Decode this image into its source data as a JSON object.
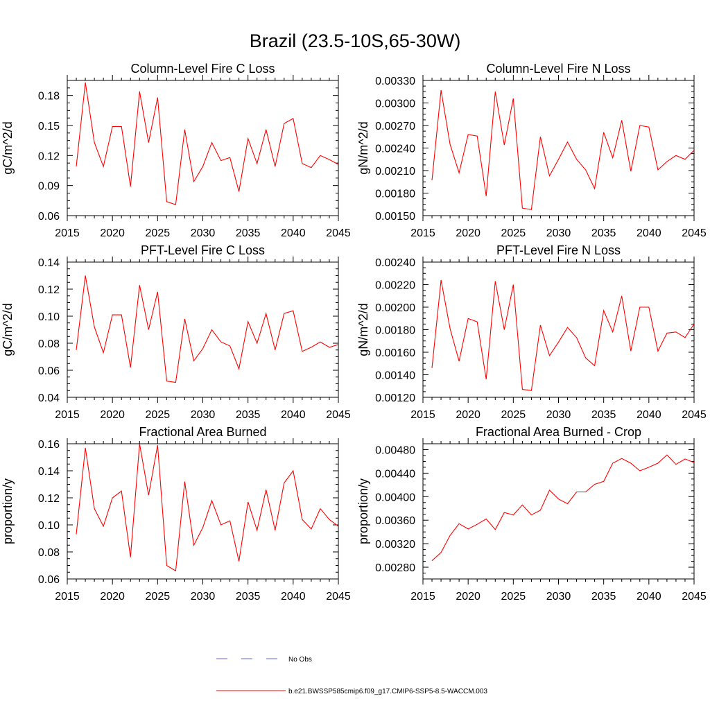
{
  "figure": {
    "title": "Brazil (23.5-10S,65-30W)",
    "series_color": "#ff0000",
    "obs_color": "#6666cc",
    "legend": [
      {
        "label": "No Obs",
        "style": "dashed",
        "color": "#6666cc"
      },
      {
        "label": "b.e21.BWSSP585cmip6.f09_g17.CMIP6-SSP5-8.5-WACCM.003",
        "style": "solid",
        "color": "#ff0000"
      }
    ]
  },
  "chart_data": [
    {
      "type": "line",
      "title": "Column-Level Fire C Loss",
      "xlabel": "",
      "ylabel": "gC/m^2/d",
      "xlim": [
        2015,
        2045
      ],
      "ylim": [
        0.06,
        0.195
      ],
      "xticks": [
        2015,
        2020,
        2025,
        2030,
        2035,
        2040,
        2045
      ],
      "xtick_labels": [
        "2015",
        "2020",
        "2025",
        "2030",
        "2035",
        "2040",
        "2045"
      ],
      "yticks": [
        0.06,
        0.09,
        0.12,
        0.15,
        0.18
      ],
      "ytick_labels": [
        "0.06",
        "0.09",
        "0.12",
        "0.15",
        "0.18"
      ],
      "x": [
        2016,
        2017,
        2018,
        2019,
        2020,
        2021,
        2022,
        2023,
        2024,
        2025,
        2026,
        2027,
        2028,
        2029,
        2030,
        2031,
        2032,
        2033,
        2034,
        2035,
        2036,
        2037,
        2038,
        2039,
        2040,
        2041,
        2042,
        2043,
        2044,
        2045
      ],
      "series": [
        {
          "name": "b.e21.BWSSP585cmip6.f09_g17.CMIP6-SSP5-8.5-WACCM.003",
          "values": [
            0.109,
            0.193,
            0.133,
            0.109,
            0.149,
            0.149,
            0.089,
            0.184,
            0.133,
            0.178,
            0.074,
            0.071,
            0.146,
            0.094,
            0.109,
            0.133,
            0.115,
            0.118,
            0.084,
            0.137,
            0.112,
            0.146,
            0.109,
            0.152,
            0.157,
            0.112,
            0.108,
            0.12,
            0.116,
            0.111
          ]
        }
      ]
    },
    {
      "type": "line",
      "title": "Column-Level Fire N Loss",
      "xlabel": "",
      "ylabel": "gN/m^2/d",
      "xlim": [
        2015,
        2045
      ],
      "ylim": [
        0.0015,
        0.0033
      ],
      "xticks": [
        2015,
        2020,
        2025,
        2030,
        2035,
        2040,
        2045
      ],
      "xtick_labels": [
        "2015",
        "2020",
        "2025",
        "2030",
        "2035",
        "2040",
        "2045"
      ],
      "yticks": [
        0.0015,
        0.0018,
        0.0021,
        0.0024,
        0.0027,
        0.003,
        0.0033
      ],
      "ytick_labels": [
        "0.00150",
        "0.00180",
        "0.00210",
        "0.00240",
        "0.00270",
        "0.00300",
        "0.00330"
      ],
      "x": [
        2016,
        2017,
        2018,
        2019,
        2020,
        2021,
        2022,
        2023,
        2024,
        2025,
        2026,
        2027,
        2028,
        2029,
        2030,
        2031,
        2032,
        2033,
        2034,
        2035,
        2036,
        2037,
        2038,
        2039,
        2040,
        2041,
        2042,
        2043,
        2044,
        2045
      ],
      "series": [
        {
          "name": "b.e21.BWSSP585cmip6.f09_g17.CMIP6-SSP5-8.5-WACCM.003",
          "values": [
            0.00197,
            0.00317,
            0.00245,
            0.00207,
            0.00258,
            0.00256,
            0.00176,
            0.00315,
            0.00244,
            0.00306,
            0.0016,
            0.00158,
            0.00255,
            0.00203,
            0.00225,
            0.00248,
            0.00225,
            0.00211,
            0.00186,
            0.00261,
            0.00227,
            0.00277,
            0.00209,
            0.0027,
            0.00268,
            0.00211,
            0.00222,
            0.0023,
            0.00225,
            0.00237
          ]
        }
      ]
    },
    {
      "type": "line",
      "title": "PFT-Level Fire C Loss",
      "xlabel": "",
      "ylabel": "gC/m^2/d",
      "xlim": [
        2015,
        2045
      ],
      "ylim": [
        0.04,
        0.14
      ],
      "xticks": [
        2015,
        2020,
        2025,
        2030,
        2035,
        2040,
        2045
      ],
      "xtick_labels": [
        "2015",
        "2020",
        "2025",
        "2030",
        "2035",
        "2040",
        "2045"
      ],
      "yticks": [
        0.04,
        0.06,
        0.08,
        0.1,
        0.12,
        0.14
      ],
      "ytick_labels": [
        "0.04",
        "0.06",
        "0.08",
        "0.10",
        "0.12",
        "0.14"
      ],
      "x": [
        2016,
        2017,
        2018,
        2019,
        2020,
        2021,
        2022,
        2023,
        2024,
        2025,
        2026,
        2027,
        2028,
        2029,
        2030,
        2031,
        2032,
        2033,
        2034,
        2035,
        2036,
        2037,
        2038,
        2039,
        2040,
        2041,
        2042,
        2043,
        2044,
        2045
      ],
      "series": [
        {
          "name": "b.e21.BWSSP585cmip6.f09_g17.CMIP6-SSP5-8.5-WACCM.003",
          "values": [
            0.075,
            0.13,
            0.092,
            0.073,
            0.101,
            0.101,
            0.062,
            0.123,
            0.09,
            0.118,
            0.052,
            0.051,
            0.098,
            0.067,
            0.076,
            0.09,
            0.081,
            0.078,
            0.061,
            0.096,
            0.08,
            0.102,
            0.075,
            0.102,
            0.104,
            0.074,
            0.077,
            0.081,
            0.077,
            0.079
          ]
        }
      ]
    },
    {
      "type": "line",
      "title": "PFT-Level Fire N Loss",
      "xlabel": "",
      "ylabel": "gN/m^2/d",
      "xlim": [
        2015,
        2045
      ],
      "ylim": [
        0.0012,
        0.0024
      ],
      "xticks": [
        2015,
        2020,
        2025,
        2030,
        2035,
        2040,
        2045
      ],
      "xtick_labels": [
        "2015",
        "2020",
        "2025",
        "2030",
        "2035",
        "2040",
        "2045"
      ],
      "yticks": [
        0.0012,
        0.0014,
        0.0016,
        0.0018,
        0.002,
        0.0022,
        0.0024
      ],
      "ytick_labels": [
        "0.00120",
        "0.00140",
        "0.00160",
        "0.00180",
        "0.00200",
        "0.00220",
        "0.00240"
      ],
      "x": [
        2016,
        2017,
        2018,
        2019,
        2020,
        2021,
        2022,
        2023,
        2024,
        2025,
        2026,
        2027,
        2028,
        2029,
        2030,
        2031,
        2032,
        2033,
        2034,
        2035,
        2036,
        2037,
        2038,
        2039,
        2040,
        2041,
        2042,
        2043,
        2044,
        2045
      ],
      "series": [
        {
          "name": "b.e21.BWSSP585cmip6.f09_g17.CMIP6-SSP5-8.5-WACCM.003",
          "values": [
            0.00146,
            0.00224,
            0.00181,
            0.00152,
            0.0019,
            0.00187,
            0.00136,
            0.00223,
            0.0018,
            0.0022,
            0.00127,
            0.00126,
            0.00184,
            0.00157,
            0.00169,
            0.00182,
            0.00173,
            0.00155,
            0.00148,
            0.00197,
            0.00178,
            0.0021,
            0.00161,
            0.002,
            0.002,
            0.00161,
            0.00177,
            0.00178,
            0.00173,
            0.00185
          ]
        }
      ]
    },
    {
      "type": "line",
      "title": "Fractional Area Burned",
      "xlabel": "",
      "ylabel": "proportion/y",
      "xlim": [
        2015,
        2045
      ],
      "ylim": [
        0.06,
        0.16
      ],
      "xticks": [
        2015,
        2020,
        2025,
        2030,
        2035,
        2040,
        2045
      ],
      "xtick_labels": [
        "2015",
        "2020",
        "2025",
        "2030",
        "2035",
        "2040",
        "2045"
      ],
      "yticks": [
        0.06,
        0.08,
        0.1,
        0.12,
        0.14,
        0.16
      ],
      "ytick_labels": [
        "0.06",
        "0.08",
        "0.10",
        "0.12",
        "0.14",
        "0.16"
      ],
      "x": [
        2016,
        2017,
        2018,
        2019,
        2020,
        2021,
        2022,
        2023,
        2024,
        2025,
        2026,
        2027,
        2028,
        2029,
        2030,
        2031,
        2032,
        2033,
        2034,
        2035,
        2036,
        2037,
        2038,
        2039,
        2040,
        2041,
        2042,
        2043,
        2044,
        2045
      ],
      "series": [
        {
          "name": "b.e21.BWSSP585cmip6.f09_g17.CMIP6-SSP5-8.5-WACCM.003",
          "values": [
            0.093,
            0.157,
            0.112,
            0.099,
            0.12,
            0.125,
            0.076,
            0.16,
            0.122,
            0.159,
            0.07,
            0.066,
            0.132,
            0.085,
            0.098,
            0.118,
            0.1,
            0.103,
            0.073,
            0.117,
            0.096,
            0.126,
            0.096,
            0.131,
            0.14,
            0.104,
            0.097,
            0.112,
            0.104,
            0.099
          ]
        }
      ]
    },
    {
      "type": "line",
      "title": "Fractional Area Burned - Crop",
      "xlabel": "",
      "ylabel": "proportion/y",
      "xlim": [
        2015,
        2045
      ],
      "ylim": [
        0.0026,
        0.0049
      ],
      "xticks": [
        2015,
        2020,
        2025,
        2030,
        2035,
        2040,
        2045
      ],
      "xtick_labels": [
        "2015",
        "2020",
        "2025",
        "2030",
        "2035",
        "2040",
        "2045"
      ],
      "yticks": [
        0.0028,
        0.0032,
        0.0036,
        0.004,
        0.0044,
        0.0048
      ],
      "ytick_labels": [
        "0.00280",
        "0.00320",
        "0.00360",
        "0.00400",
        "0.00440",
        "0.00480"
      ],
      "x": [
        2016,
        2017,
        2018,
        2019,
        2020,
        2021,
        2022,
        2023,
        2024,
        2025,
        2026,
        2027,
        2028,
        2029,
        2030,
        2031,
        2032,
        2033,
        2034,
        2035,
        2036,
        2037,
        2038,
        2039,
        2040,
        2041,
        2042,
        2043,
        2044,
        2045
      ],
      "series": [
        {
          "name": "b.e21.BWSSP585cmip6.f09_g17.CMIP6-SSP5-8.5-WACCM.003",
          "values": [
            0.00291,
            0.00305,
            0.00334,
            0.00354,
            0.00345,
            0.00353,
            0.00362,
            0.00344,
            0.00373,
            0.00369,
            0.00386,
            0.00369,
            0.00377,
            0.00411,
            0.00396,
            0.00388,
            0.00408,
            0.00408,
            0.00421,
            0.00426,
            0.00457,
            0.00465,
            0.00457,
            0.00444,
            0.0045,
            0.00457,
            0.00471,
            0.00455,
            0.00464,
            0.00458
          ]
        }
      ]
    }
  ]
}
